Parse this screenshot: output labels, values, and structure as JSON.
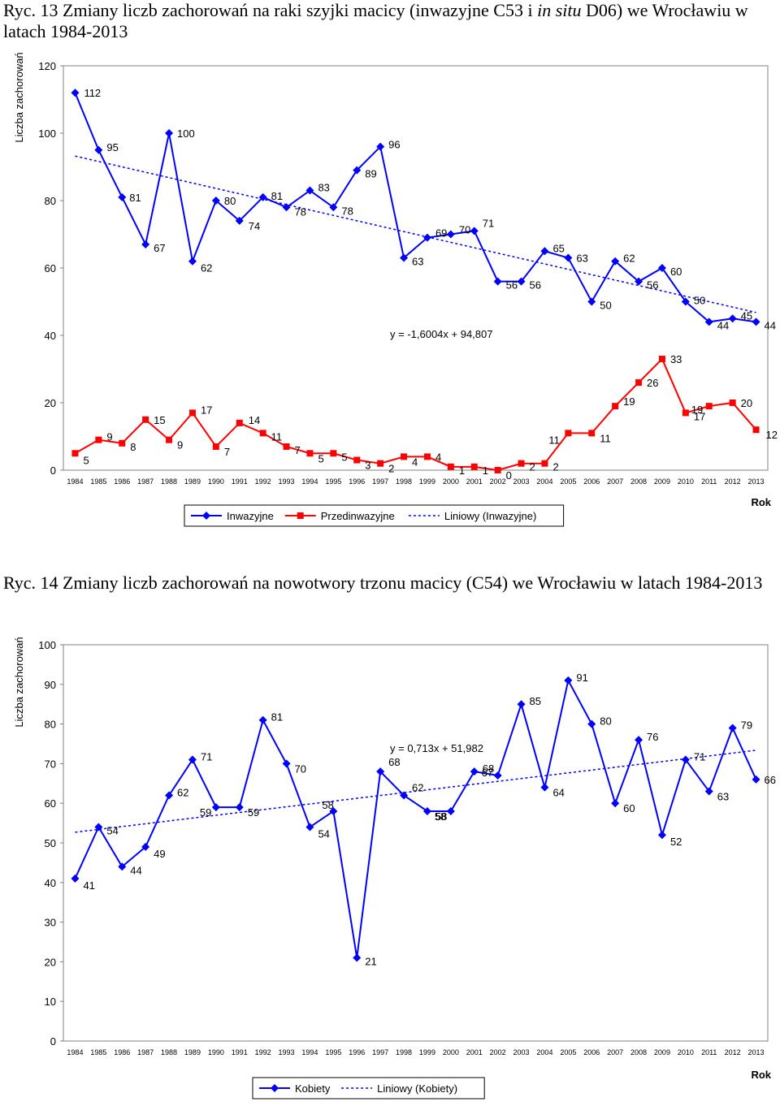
{
  "captions": [
    {
      "pre": "Ryc. 13 Zmiany liczb zachorowań na raki szyjki macicy (inwazyjne C53 i ",
      "em": "in situ",
      "post": " D06) we Wrocławiu w latach 1984-2013"
    },
    {
      "pre": "Ryc. 14 Zmiany liczb zachorowań na nowotwory trzonu macicy (C54) we Wrocławiu w latach 1984-2013",
      "em": "",
      "post": ""
    }
  ],
  "chart_data": [
    {
      "type": "line",
      "ylabel": "Liczba zachorowań",
      "xlabel": "Rok",
      "ylim": [
        0,
        120
      ],
      "yticks": [
        0,
        20,
        40,
        60,
        80,
        100,
        120
      ],
      "grid": false,
      "legend_position": "bottom",
      "x": [
        "1984",
        "1985",
        "1986",
        "1987",
        "1988",
        "1989",
        "1990",
        "1991",
        "1992",
        "1993",
        "1994",
        "1995",
        "1996",
        "1997",
        "1998",
        "1999",
        "2000",
        "2001",
        "2002",
        "2003",
        "2004",
        "2005",
        "2006",
        "2007",
        "2008",
        "2009",
        "2010",
        "2011",
        "2012",
        "2013"
      ],
      "series": [
        {
          "name": "Inwazyjne",
          "color": "#0000ff",
          "marker": "diamond",
          "values": [
            112,
            95,
            81,
            67,
            100,
            62,
            80,
            74,
            81,
            78,
            83,
            78,
            89,
            96,
            63,
            69,
            70,
            71,
            56,
            56,
            65,
            63,
            50,
            62,
            56,
            60,
            50,
            44,
            45,
            44
          ]
        },
        {
          "name": "Przedinwazyjne",
          "color": "#ff0000",
          "marker": "square",
          "values": [
            5,
            9,
            8,
            15,
            9,
            17,
            7,
            14,
            11,
            7,
            5,
            5,
            3,
            2,
            4,
            4,
            1,
            1,
            0,
            2,
            2,
            11,
            11,
            19,
            26,
            33,
            17,
            19,
            20,
            12
          ]
        }
      ],
      "trend": {
        "name": "Liniowy (Inwazyjne)",
        "of": "Inwazyjne",
        "equation": "y = -1,6004x + 94,807",
        "slope": -1.6004,
        "intercept": 94.807,
        "color": "#0000ff"
      }
    },
    {
      "type": "line",
      "ylabel": "Liczba zachorowań",
      "xlabel": "Rok",
      "ylim": [
        0,
        100
      ],
      "yticks": [
        0,
        10,
        20,
        30,
        40,
        50,
        60,
        70,
        80,
        90,
        100
      ],
      "grid": false,
      "legend_position": "bottom",
      "x": [
        "1984",
        "1985",
        "1986",
        "1987",
        "1988",
        "1989",
        "1990",
        "1991",
        "1992",
        "1993",
        "1994",
        "1995",
        "1996",
        "1997",
        "1998",
        "1999",
        "2000",
        "2001",
        "2002",
        "2003",
        "2004",
        "2005",
        "2006",
        "2007",
        "2008",
        "2009",
        "2010",
        "2011",
        "2012",
        "2013"
      ],
      "series": [
        {
          "name": "Kobiety",
          "color": "#0000ff",
          "marker": "diamond",
          "values": [
            41,
            54,
            44,
            49,
            62,
            71,
            59,
            59,
            81,
            70,
            54,
            58,
            21,
            68,
            62,
            58,
            58,
            68,
            67,
            85,
            64,
            91,
            80,
            60,
            76,
            52,
            71,
            63,
            79,
            66
          ]
        }
      ],
      "trend": {
        "name": "Liniowy (Kobiety)",
        "of": "Kobiety",
        "equation": "y = 0,713x + 51,982",
        "slope": 0.713,
        "intercept": 51.982,
        "color": "#0000ff"
      }
    }
  ]
}
